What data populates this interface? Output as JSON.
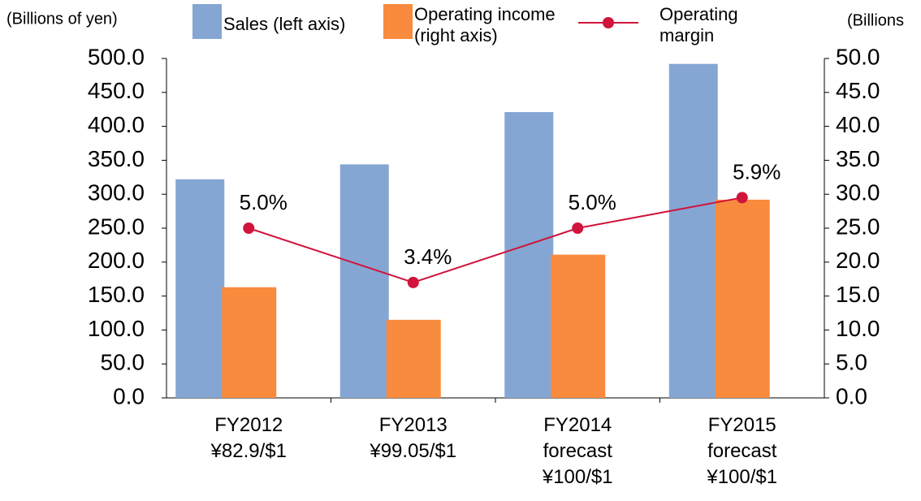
{
  "chart_data": {
    "type": "bar",
    "y_label": "(Billions of yen)",
    "y2_label": "(Billions",
    "categories": [
      "FY2012\n¥82.9/$1",
      "FY2013\n¥99.05/$1",
      "FY2014\nforecast\n¥100/$1",
      "FY2015\nforecast\n¥100/$1"
    ],
    "ylim": [
      0,
      500
    ],
    "yticks": [
      {
        "value": 0,
        "label": "0.0"
      },
      {
        "value": 50,
        "label": "50.0"
      },
      {
        "value": 100,
        "label": "100.0"
      },
      {
        "value": 150,
        "label": "150.0"
      },
      {
        "value": 200,
        "label": "200.0"
      },
      {
        "value": 250,
        "label": "250.0"
      },
      {
        "value": 300,
        "label": "300.0"
      },
      {
        "value": 350,
        "label": "350.0"
      },
      {
        "value": 400,
        "label": "400.0"
      },
      {
        "value": 450,
        "label": "450.0"
      },
      {
        "value": 500,
        "label": "500.0"
      }
    ],
    "y2lim": [
      0,
      50
    ],
    "y2ticks": [
      {
        "value": 0,
        "label": "0.0"
      },
      {
        "value": 5,
        "label": "5.0"
      },
      {
        "value": 10,
        "label": "10.0"
      },
      {
        "value": 15,
        "label": "15.0"
      },
      {
        "value": 20,
        "label": "20.0"
      },
      {
        "value": 25,
        "label": "25.0"
      },
      {
        "value": 30,
        "label": "30.0"
      },
      {
        "value": 35,
        "label": "35.0"
      },
      {
        "value": 40,
        "label": "40.0"
      },
      {
        "value": 45,
        "label": "45.0"
      },
      {
        "value": 50,
        "label": "50.0"
      }
    ],
    "y3lim": [
      0,
      10
    ],
    "series": [
      {
        "name": "Sales (left axis)",
        "color": "#85a6d3",
        "type": "bar",
        "values": [
          322,
          344,
          421,
          492
        ]
      },
      {
        "name": "Operating income\n(right axis)",
        "color": "#f98b3e",
        "type": "bar",
        "axis": "y2",
        "values": [
          16.3,
          11.5,
          21.1,
          29.2
        ]
      },
      {
        "name": "Operating\nmargin",
        "color": "#d0143c",
        "type": "line",
        "axis": "y3",
        "values": [
          5.0,
          3.4,
          5.0,
          5.9
        ],
        "value_labels": [
          "5.0%",
          "3.4%",
          "5.0%",
          "5.9%"
        ]
      }
    ]
  }
}
